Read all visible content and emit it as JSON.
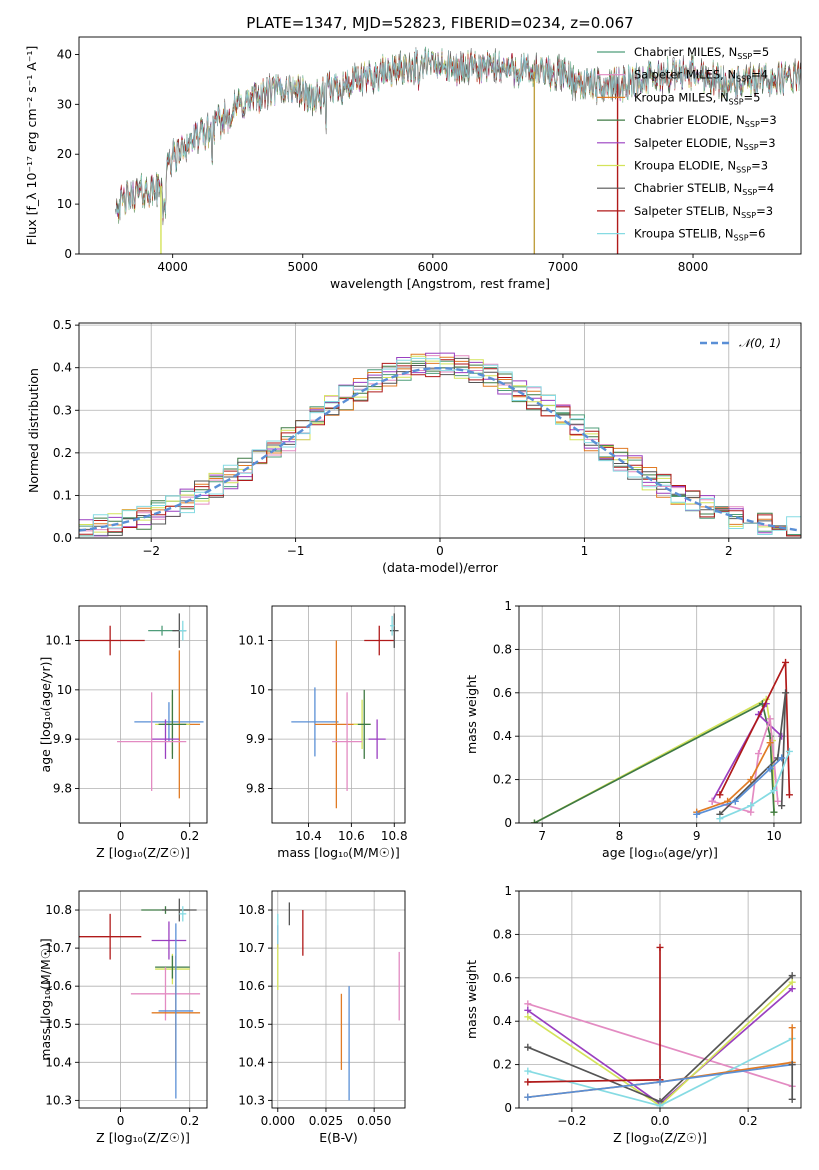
{
  "chart_data": [
    {
      "id": "spectrum",
      "type": "line",
      "title": "PLATE=1347, MJD=52823, FIBERID=0234, z=0.067",
      "xlabel": "wavelength [Angstrom, rest frame]",
      "ylabel": "Flux [f_λ 10⁻¹⁷ erg cm⁻² s⁻¹ A⁻¹]",
      "xlim": [
        3280,
        8830
      ],
      "ylim": [
        0,
        43.5
      ],
      "xticks": [
        4000,
        5000,
        6000,
        7000,
        8000
      ],
      "yticks": [
        0,
        10,
        20,
        30,
        40
      ],
      "legend_position": "top-right",
      "continuum": {
        "x": [
          3560,
          3700,
          3900,
          4000,
          4100,
          4300,
          4500,
          4700,
          4900,
          5100,
          5200,
          5400,
          5600,
          5800,
          6000,
          6200,
          6500,
          6800,
          7000,
          7100,
          7300,
          7600,
          8000,
          8300,
          8600,
          8830
        ],
        "y": [
          9.5,
          12,
          13,
          19.5,
          22,
          25,
          29.5,
          32,
          33.5,
          31,
          33,
          34.5,
          36,
          37.5,
          38,
          37,
          37.5,
          36.5,
          36,
          34.5,
          33.5,
          35,
          36.5,
          34,
          35,
          35.5
        ]
      },
      "series": [
        {
          "name": "Chabrier MILES, N_SSP=5",
          "label_main": "Chabrier MILES, N",
          "label_sub": "SSP",
          "label_tail": "=5",
          "color": "#4f9d7a"
        },
        {
          "name": "Salpeter MILES, N_SSP=4",
          "label_main": "Salpeter MILES, N",
          "label_sub": "SSP",
          "label_tail": "=4",
          "color": "#e38bc2"
        },
        {
          "name": "Kroupa MILES, N_SSP=5",
          "label_main": "Kroupa MILES, N",
          "label_sub": "SSP",
          "label_tail": "=5",
          "color": "#e07b25"
        },
        {
          "name": "Chabrier ELODIE, N_SSP=3",
          "label_main": "Chabrier ELODIE, N",
          "label_sub": "SSP",
          "label_tail": "=3",
          "color": "#3f7a44"
        },
        {
          "name": "Salpeter ELODIE, N_SSP=3",
          "label_main": "Salpeter ELODIE, N",
          "label_sub": "SSP",
          "label_tail": "=3",
          "color": "#9a3fc0"
        },
        {
          "name": "Kroupa ELODIE, N_SSP=3",
          "label_main": "Kroupa ELODIE, N",
          "label_sub": "SSP",
          "label_tail": "=3",
          "color": "#d4e35a"
        },
        {
          "name": "Chabrier STELIB, N_SSP=4",
          "label_main": "Chabrier STELIB, N",
          "label_sub": "SSP",
          "label_tail": "=4",
          "color": "#555555"
        },
        {
          "name": "Salpeter STELIB, N_SSP=3",
          "label_main": "Salpeter STELIB, N",
          "label_sub": "SSP",
          "label_tail": "=3",
          "color": "#b01a1a"
        },
        {
          "name": "Kroupa STELIB, N_SSP=6",
          "label_main": "Kroupa STELIB, N",
          "label_sub": "SSP",
          "label_tail": "=6",
          "color": "#86dbe3"
        }
      ],
      "vertical_spikes": [
        {
          "x": 3910,
          "color": "#d4e35a"
        },
        {
          "x": 6780,
          "color": "#c0a040"
        },
        {
          "x": 7420,
          "color": "#b01a1a"
        }
      ]
    },
    {
      "id": "residuals",
      "type": "histogram",
      "xlabel": "(data-model)/error",
      "ylabel": "Normed distribution",
      "xlim": [
        -2.5,
        2.5
      ],
      "ylim": [
        0,
        0.505
      ],
      "xticks": [
        -2,
        -1,
        0,
        1,
        2
      ],
      "xtick_labels": [
        "−2",
        "−1",
        "0",
        "1",
        "2"
      ],
      "yticks": [
        0.0,
        0.1,
        0.2,
        0.3,
        0.4,
        0.5
      ],
      "ytick_labels": [
        "0.0",
        "0.1",
        "0.2",
        "0.3",
        "0.4",
        "0.5"
      ],
      "bin_width": 0.1,
      "reference": {
        "name": "𝒩(0, 1)",
        "color": "#5a8fd6",
        "style": "dashed"
      },
      "legend_position": "top-right"
    },
    {
      "id": "age_vs_Z",
      "type": "errorbar",
      "xlabel": "Z [log₁₀(Z/Z☉)]",
      "ylabel": "age  [log₁₀(age/yr)]",
      "xlim": [
        -0.12,
        0.25
      ],
      "ylim": [
        9.73,
        10.17
      ],
      "xticks": [
        0.0,
        0.2
      ],
      "yticks": [
        9.8,
        9.9,
        10.0,
        10.1
      ],
      "points": [
        {
          "x": -0.03,
          "y": 10.1,
          "xerr": 0.1,
          "yerr": 0.03,
          "color": "#b01a1a"
        },
        {
          "x": 0.12,
          "y": 10.12,
          "xerr": 0.04,
          "yerr": 0.01,
          "color": "#4f9d7a"
        },
        {
          "x": 0.17,
          "y": 10.12,
          "xerr": 0.02,
          "yerr": 0.035,
          "color": "#555555"
        },
        {
          "x": 0.18,
          "y": 10.12,
          "xerr": 0.01,
          "yerr": 0.02,
          "color": "#86dbe3"
        },
        {
          "x": 0.14,
          "y": 9.935,
          "xerr": 0.1,
          "yerr": 0.04,
          "color": "#5a8fd6"
        },
        {
          "x": 0.17,
          "y": 9.93,
          "xerr": 0.06,
          "yerr": 0.15,
          "color": "#e07b25"
        },
        {
          "x": 0.15,
          "y": 9.93,
          "xerr": 0.05,
          "yerr": 0.06,
          "color": "#d4e35a"
        },
        {
          "x": 0.15,
          "y": 9.93,
          "xerr": 0.04,
          "yerr": 0.07,
          "color": "#3f7a44"
        },
        {
          "x": 0.13,
          "y": 9.9,
          "xerr": 0.04,
          "yerr": 0.04,
          "color": "#9a3fc0"
        },
        {
          "x": 0.09,
          "y": 9.895,
          "xerr": 0.1,
          "yerr": 0.1,
          "color": "#e38bc2"
        }
      ]
    },
    {
      "id": "age_vs_mass",
      "type": "errorbar",
      "xlabel": "mass [log₁₀(M/M☉)]",
      "ylabel": "",
      "xlim": [
        10.23,
        10.85
      ],
      "ylim": [
        9.73,
        10.17
      ],
      "xticks": [
        10.4,
        10.6,
        10.8
      ],
      "yticks": [
        9.8,
        9.9,
        10.0,
        10.1
      ],
      "points": [
        {
          "x": 10.73,
          "y": 10.1,
          "xerr": 0.07,
          "yerr": 0.03,
          "color": "#b01a1a"
        },
        {
          "x": 10.8,
          "y": 10.12,
          "xerr": 0.02,
          "yerr": 0.035,
          "color": "#555555"
        },
        {
          "x": 10.79,
          "y": 10.13,
          "xerr": 0.01,
          "yerr": 0.02,
          "color": "#86dbe3"
        },
        {
          "x": 10.43,
          "y": 9.935,
          "xerr": 0.11,
          "yerr": 0.07,
          "color": "#5a8fd6"
        },
        {
          "x": 10.53,
          "y": 9.93,
          "xerr": 0.1,
          "yerr": 0.17,
          "color": "#e07b25"
        },
        {
          "x": 10.65,
          "y": 9.93,
          "xerr": 0.04,
          "yerr": 0.05,
          "color": "#d4e35a"
        },
        {
          "x": 10.66,
          "y": 9.93,
          "xerr": 0.03,
          "yerr": 0.07,
          "color": "#3f7a44"
        },
        {
          "x": 10.72,
          "y": 9.9,
          "xerr": 0.04,
          "yerr": 0.04,
          "color": "#9a3fc0"
        },
        {
          "x": 10.58,
          "y": 9.895,
          "xerr": 0.07,
          "yerr": 0.1,
          "color": "#e38bc2"
        }
      ]
    },
    {
      "id": "weight_vs_age",
      "type": "line",
      "xlabel": "age  [log₁₀(age/yr)]",
      "ylabel": "mass weight",
      "xlim": [
        6.7,
        10.35
      ],
      "ylim": [
        0,
        1
      ],
      "xticks": [
        7,
        8,
        9,
        10
      ],
      "yticks": [
        0.0,
        0.2,
        0.4,
        0.6,
        0.8,
        1.0
      ],
      "series": [
        {
          "color": "#d4e35a",
          "x": [
            6.9,
            9.9,
            9.98,
            10.0
          ],
          "y": [
            0.0,
            0.57,
            0.38,
            0.05
          ]
        },
        {
          "color": "#3f7a44",
          "x": [
            6.9,
            9.85,
            9.95,
            10.0
          ],
          "y": [
            0.0,
            0.55,
            0.4,
            0.05
          ]
        },
        {
          "color": "#9a3fc0",
          "x": [
            9.2,
            9.9,
            9.8,
            10.1
          ],
          "y": [
            0.1,
            0.55,
            0.5,
            0.4
          ]
        },
        {
          "color": "#b01a1a",
          "x": [
            9.3,
            10.15,
            10.2
          ],
          "y": [
            0.13,
            0.74,
            0.13
          ]
        },
        {
          "color": "#e38bc2",
          "x": [
            9.2,
            9.7,
            9.8,
            9.95,
            10.05
          ],
          "y": [
            0.1,
            0.05,
            0.32,
            0.48,
            0.1
          ]
        },
        {
          "color": "#e07b25",
          "x": [
            9.0,
            9.4,
            9.7,
            9.95
          ],
          "y": [
            0.05,
            0.1,
            0.2,
            0.37
          ]
        },
        {
          "color": "#555555",
          "x": [
            9.3,
            10.05,
            10.15,
            10.1
          ],
          "y": [
            0.04,
            0.3,
            0.6,
            0.08
          ]
        },
        {
          "color": "#86dbe3",
          "x": [
            9.3,
            9.7,
            10.0,
            10.2
          ],
          "y": [
            0.02,
            0.08,
            0.15,
            0.33
          ]
        },
        {
          "color": "#5a8fd6",
          "x": [
            9.0,
            9.5,
            9.95,
            10.1
          ],
          "y": [
            0.04,
            0.1,
            0.25,
            0.3
          ]
        }
      ]
    },
    {
      "id": "mass_vs_Z",
      "type": "errorbar",
      "xlabel": "Z [log₁₀(Z/Z☉)]",
      "ylabel": "mass [log₁₀(M/M☉)]",
      "xlim": [
        -0.12,
        0.25
      ],
      "ylim": [
        10.28,
        10.85
      ],
      "xticks": [
        0.0,
        0.2
      ],
      "yticks": [
        10.3,
        10.4,
        10.5,
        10.6,
        10.7,
        10.8
      ],
      "points": [
        {
          "x": -0.03,
          "y": 10.73,
          "xerr": 0.09,
          "yerr": 0.06,
          "color": "#b01a1a"
        },
        {
          "x": 0.13,
          "y": 10.8,
          "xerr": 0.07,
          "yerr": 0.01,
          "color": "#3f7a44"
        },
        {
          "x": 0.17,
          "y": 10.8,
          "xerr": 0.05,
          "yerr": 0.03,
          "color": "#555555"
        },
        {
          "x": 0.18,
          "y": 10.79,
          "xerr": 0.01,
          "yerr": 0.02,
          "color": "#86dbe3"
        },
        {
          "x": 0.14,
          "y": 10.72,
          "xerr": 0.05,
          "yerr": 0.05,
          "color": "#9a3fc0"
        },
        {
          "x": 0.15,
          "y": 10.645,
          "xerr": 0.05,
          "yerr": 0.04,
          "color": "#d4e35a"
        },
        {
          "x": 0.15,
          "y": 10.65,
          "xerr": 0.05,
          "yerr": 0.03,
          "color": "#3f7a44"
        },
        {
          "x": 0.13,
          "y": 10.58,
          "xerr": 0.1,
          "yerr": 0.07,
          "color": "#e38bc2"
        },
        {
          "x": 0.16,
          "y": 10.53,
          "xerr": 0.07,
          "yerr": 0.15,
          "color": "#e07b25"
        },
        {
          "x": 0.16,
          "y": 10.535,
          "xerr": 0.05,
          "yerr": 0.23,
          "color": "#5a8fd6"
        }
      ]
    },
    {
      "id": "mass_vs_ebv",
      "type": "errorbar",
      "xlabel": "E(B-V)",
      "ylabel": "",
      "xlim": [
        -0.003,
        0.066
      ],
      "ylim": [
        10.28,
        10.85
      ],
      "xticks": [
        0.0,
        0.025,
        0.05
      ],
      "xtick_labels": [
        "0.000",
        "0.025",
        "0.050"
      ],
      "yticks": [
        10.3,
        10.4,
        10.5,
        10.6,
        10.7,
        10.8
      ],
      "points": [
        {
          "x": 0.0,
          "y": 10.73,
          "xerr": 0,
          "yerr": 0.03,
          "color": "#9a3fc0"
        },
        {
          "x": 0.0,
          "y": 10.75,
          "xerr": 0,
          "yerr": 0.04,
          "color": "#86dbe3"
        },
        {
          "x": 0.0,
          "y": 10.65,
          "xerr": 0,
          "yerr": 0.06,
          "color": "#d4e35a"
        },
        {
          "x": 0.006,
          "y": 10.79,
          "xerr": 0,
          "yerr": 0.03,
          "color": "#555555"
        },
        {
          "x": 0.013,
          "y": 10.74,
          "xerr": 0,
          "yerr": 0.06,
          "color": "#b01a1a"
        },
        {
          "x": 0.033,
          "y": 10.48,
          "xerr": 0,
          "yerr": 0.1,
          "color": "#e07b25"
        },
        {
          "x": 0.037,
          "y": 10.45,
          "xerr": 0,
          "yerr": 0.15,
          "color": "#5a8fd6"
        },
        {
          "x": 0.063,
          "y": 10.6,
          "xerr": 0,
          "yerr": 0.09,
          "color": "#e38bc2"
        }
      ]
    },
    {
      "id": "weight_vs_Z",
      "type": "line",
      "xlabel": "Z [log₁₀(Z/Z☉)]",
      "ylabel": "mass weight",
      "xlim": [
        -0.32,
        0.32
      ],
      "ylim": [
        0,
        1
      ],
      "xticks": [
        -0.2,
        0.0,
        0.2
      ],
      "xtick_labels": [
        "−0.2",
        "0.0",
        "0.2"
      ],
      "yticks": [
        0.0,
        0.2,
        0.4,
        0.6,
        0.8,
        1.0
      ],
      "series": [
        {
          "color": "#e38bc2",
          "x": [
            -0.3,
            0.3
          ],
          "y": [
            0.48,
            0.1
          ]
        },
        {
          "color": "#9a3fc0",
          "x": [
            -0.3,
            0.0,
            0.3
          ],
          "y": [
            0.45,
            0.02,
            0.55
          ]
        },
        {
          "color": "#d4e35a",
          "x": [
            -0.3,
            0.0,
            0.3
          ],
          "y": [
            0.42,
            0.01,
            0.58
          ]
        },
        {
          "color": "#555555",
          "x": [
            -0.3,
            0.0,
            0.3
          ],
          "y": [
            0.28,
            0.03,
            0.61
          ]
        },
        {
          "color": "#86dbe3",
          "x": [
            -0.3,
            0.0,
            0.3
          ],
          "y": [
            0.17,
            0.01,
            0.32
          ]
        },
        {
          "color": "#b01a1a",
          "x": [
            -0.3,
            0.0,
            0.0,
            0.0
          ],
          "y": [
            0.12,
            0.13,
            0.74,
            0.13
          ]
        },
        {
          "color": "#e07b25",
          "x": [
            -0.3,
            0.0,
            0.3,
            0.3
          ],
          "y": [
            0.05,
            0.12,
            0.21,
            0.37
          ]
        },
        {
          "color": "#5a8fd6",
          "x": [
            -0.3,
            0.0,
            0.3
          ],
          "y": [
            0.05,
            0.12,
            0.2
          ]
        },
        {
          "color": "#555555",
          "x": [
            0.3,
            0.3
          ],
          "y": [
            0.04,
            0.2
          ]
        }
      ]
    }
  ]
}
